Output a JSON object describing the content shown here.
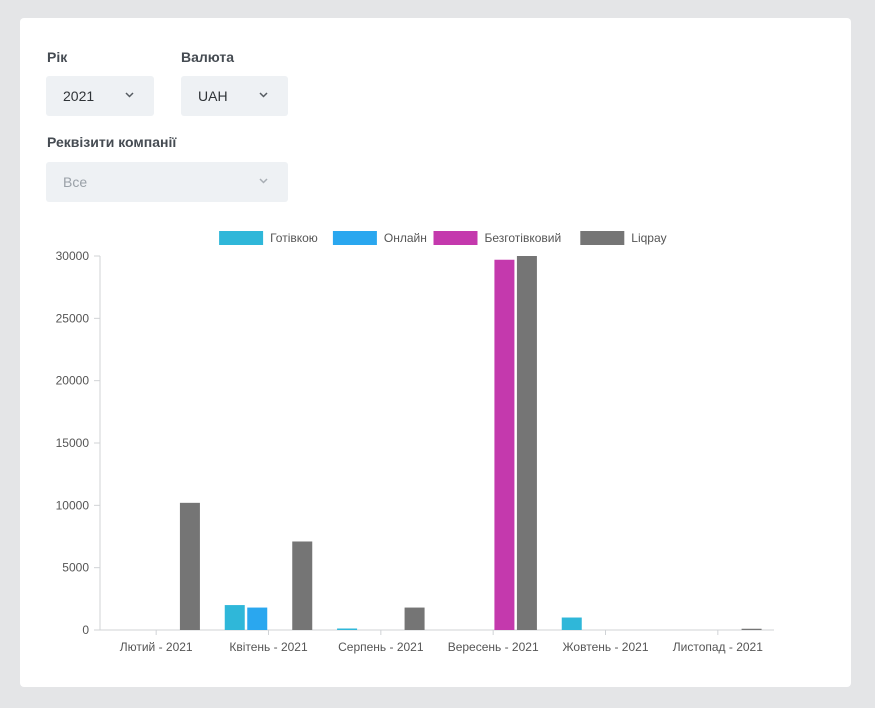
{
  "filters": {
    "year": {
      "label": "Рік",
      "value": "2021"
    },
    "currency": {
      "label": "Валюта",
      "value": "UAH"
    },
    "company": {
      "label": "Реквізити компанії",
      "value": "Все"
    }
  },
  "colors": {
    "Готівкою": "#2fb7d9",
    "Онлайн": "#2aa7ef",
    "Безготівковий": "#c439ad",
    "Liqpay": "#757575"
  },
  "chart_data": {
    "type": "bar",
    "title": "",
    "xlabel": "",
    "ylabel": "",
    "ylim": [
      0,
      30000
    ],
    "yticks": [
      0,
      5000,
      10000,
      15000,
      20000,
      25000,
      30000
    ],
    "legend_position": "top",
    "categories": [
      "Лютий - 2021",
      "Квітень - 2021",
      "Серпень - 2021",
      "Вересень - 2021",
      "Жовтень - 2021",
      "Листопад - 2021"
    ],
    "series": [
      {
        "name": "Готівкою",
        "values": [
          0,
          2000,
          120,
          0,
          1000,
          0
        ]
      },
      {
        "name": "Онлайн",
        "values": [
          0,
          1800,
          0,
          0,
          0,
          0
        ]
      },
      {
        "name": "Безготівковий",
        "values": [
          0,
          0,
          0,
          29700,
          0,
          0
        ]
      },
      {
        "name": "Liqpay",
        "values": [
          10200,
          7100,
          1800,
          30000,
          0,
          100
        ]
      }
    ]
  }
}
